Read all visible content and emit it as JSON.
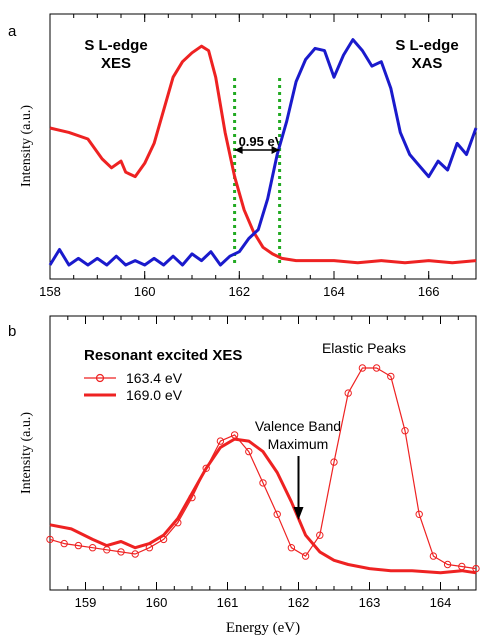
{
  "chart_data": [
    {
      "panel_label": "a",
      "type": "line",
      "ylabel": "Intensity (a.u.)",
      "xlim": [
        158,
        167
      ],
      "xticks": [
        "158",
        "160",
        "162",
        "164",
        "166"
      ],
      "xtick_values": [
        158,
        160,
        162,
        164,
        166
      ],
      "grid": false,
      "labels": [
        {
          "text": "S L-edge",
          "color": "#000000"
        },
        {
          "text": "XES",
          "color": "#000000"
        },
        {
          "text": "S L-edge",
          "color": "#000000"
        },
        {
          "text": "XAS",
          "color": "#000000"
        }
      ],
      "annotation": {
        "text": "0.95 eV",
        "x_from": 161.9,
        "x_to": 162.85
      },
      "vlines": [
        161.9,
        162.85
      ],
      "vline_color": "#22aa22",
      "series": [
        {
          "color": "#ee2222",
          "x": [
            158.0,
            158.4,
            158.8,
            159.1,
            159.3,
            159.5,
            159.6,
            159.8,
            160.0,
            160.2,
            160.4,
            160.6,
            160.8,
            161.0,
            161.2,
            161.35,
            161.5,
            161.7,
            161.9,
            162.1,
            162.3,
            162.5,
            162.7,
            162.9,
            163.2,
            163.5,
            164.0,
            164.5,
            165.0,
            165.5,
            166.0,
            166.5,
            167.0
          ],
          "y": [
            0.62,
            0.6,
            0.57,
            0.48,
            0.44,
            0.47,
            0.42,
            0.4,
            0.46,
            0.55,
            0.7,
            0.85,
            0.92,
            0.96,
            0.99,
            0.97,
            0.85,
            0.6,
            0.4,
            0.25,
            0.15,
            0.08,
            0.05,
            0.03,
            0.02,
            0.02,
            0.02,
            0.01,
            0.02,
            0.01,
            0.02,
            0.01,
            0.02
          ]
        },
        {
          "color": "#1a1acc",
          "x": [
            158.0,
            158.2,
            158.4,
            158.6,
            158.8,
            159.0,
            159.2,
            159.4,
            159.6,
            159.8,
            160.0,
            160.2,
            160.4,
            160.6,
            160.8,
            161.0,
            161.2,
            161.4,
            161.6,
            161.8,
            162.0,
            162.2,
            162.4,
            162.6,
            162.8,
            163.0,
            163.2,
            163.4,
            163.6,
            163.8,
            164.0,
            164.2,
            164.4,
            164.6,
            164.8,
            165.0,
            165.2,
            165.4,
            165.6,
            165.8,
            166.0,
            166.2,
            166.4,
            166.6,
            166.8,
            167.0
          ],
          "y": [
            0.0,
            0.07,
            0.0,
            0.03,
            0.0,
            0.03,
            0.0,
            0.04,
            0.0,
            0.02,
            0.0,
            0.03,
            0.0,
            0.04,
            0.0,
            0.05,
            0.02,
            0.06,
            0.0,
            0.04,
            0.06,
            0.12,
            0.16,
            0.3,
            0.5,
            0.65,
            0.83,
            0.93,
            0.98,
            0.97,
            0.85,
            0.95,
            1.02,
            0.97,
            0.9,
            0.92,
            0.8,
            0.6,
            0.5,
            0.45,
            0.4,
            0.47,
            0.43,
            0.55,
            0.5,
            0.62
          ]
        }
      ]
    },
    {
      "panel_label": "b",
      "type": "line",
      "xlabel": "Energy (eV)",
      "ylabel": "Intensity (a.u.)",
      "xlim": [
        158.5,
        164.5
      ],
      "xticks": [
        "159",
        "160",
        "161",
        "162",
        "163",
        "164"
      ],
      "xtick_values": [
        159,
        160,
        161,
        162,
        163,
        164
      ],
      "grid": false,
      "legend": {
        "title": "Resonant excited XES",
        "position": "top-left",
        "entries": [
          "163.4 eV",
          "169.0 eV"
        ]
      },
      "annotations": [
        {
          "text": "Elastic Peaks"
        },
        {
          "text": "Valence Band"
        },
        {
          "text": "Maximum"
        }
      ],
      "arrow_x": 162.0,
      "series": [
        {
          "name": "163.4 eV",
          "color": "#ee2222",
          "marker": "circle",
          "x": [
            158.5,
            158.7,
            158.9,
            159.1,
            159.3,
            159.5,
            159.7,
            159.9,
            160.1,
            160.3,
            160.5,
            160.7,
            160.9,
            161.1,
            161.3,
            161.5,
            161.7,
            161.9,
            162.1,
            162.3,
            162.5,
            162.7,
            162.9,
            163.1,
            163.3,
            163.5,
            163.7,
            163.9,
            164.1,
            164.3,
            164.5
          ],
          "y": [
            0.18,
            0.16,
            0.15,
            0.14,
            0.13,
            0.12,
            0.11,
            0.14,
            0.18,
            0.26,
            0.38,
            0.52,
            0.65,
            0.68,
            0.6,
            0.45,
            0.3,
            0.14,
            0.1,
            0.2,
            0.55,
            0.88,
            1.0,
            1.0,
            0.96,
            0.7,
            0.3,
            0.1,
            0.06,
            0.05,
            0.04
          ]
        },
        {
          "name": "169.0 eV",
          "color": "#ee2222",
          "marker": "none",
          "x": [
            158.5,
            158.8,
            159.1,
            159.3,
            159.5,
            159.7,
            159.9,
            160.1,
            160.3,
            160.5,
            160.7,
            160.9,
            161.1,
            161.3,
            161.5,
            161.7,
            161.9,
            162.1,
            162.3,
            162.5,
            162.7,
            163.0,
            163.3,
            163.6,
            164.0,
            164.3,
            164.5
          ],
          "y": [
            0.25,
            0.23,
            0.18,
            0.15,
            0.17,
            0.14,
            0.16,
            0.2,
            0.28,
            0.4,
            0.52,
            0.62,
            0.66,
            0.65,
            0.6,
            0.5,
            0.36,
            0.2,
            0.12,
            0.08,
            0.06,
            0.04,
            0.03,
            0.03,
            0.02,
            0.03,
            0.02
          ]
        }
      ]
    }
  ]
}
